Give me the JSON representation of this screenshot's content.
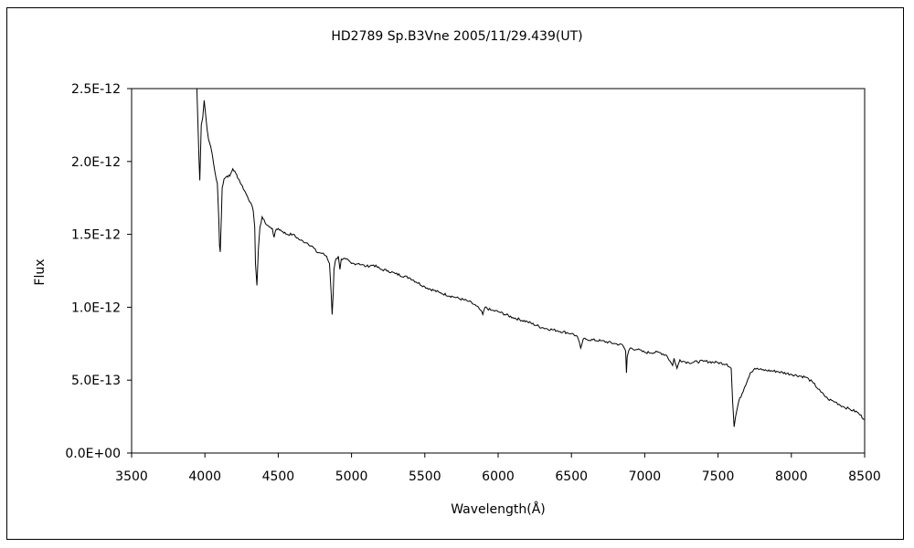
{
  "chart_data": {
    "type": "line",
    "title": "HD2789  Sp.B3Vne   2005/11/29.439(UT)",
    "xlabel": "Wavelength(Å)",
    "ylabel": "Flux",
    "xlim": [
      3500,
      8500
    ],
    "ylim": [
      0,
      2.5e-12
    ],
    "x_ticks": [
      3500,
      4000,
      4500,
      5000,
      5500,
      6000,
      6500,
      7000,
      7500,
      8000,
      8500
    ],
    "x_tick_labels": [
      "3500",
      "4000",
      "4500",
      "5000",
      "5500",
      "6000",
      "6500",
      "7000",
      "7500",
      "8000",
      "8500"
    ],
    "y_ticks": [
      0,
      5e-13,
      1e-12,
      1.5e-12,
      2e-12,
      2.5e-12
    ],
    "y_tick_labels": [
      "0.0E+00",
      "5.0E-13",
      "1.0E-12",
      "1.5E-12",
      "2.0E-12",
      "2.5E-12"
    ],
    "grid": false,
    "legend": "none",
    "line_color": "#000000",
    "series": [
      {
        "x": [
          3945,
          3960,
          3965,
          3975,
          3985,
          3995,
          4005,
          4015,
          4025,
          4040,
          4050,
          4060,
          4070,
          4085,
          4095,
          4100,
          4105,
          4112,
          4118,
          4130,
          4150,
          4170,
          4190,
          4210,
          4230,
          4250,
          4270,
          4290,
          4310,
          4330,
          4340,
          4345,
          4355,
          4365,
          4375,
          4390,
          4410,
          4440,
          4460,
          4472,
          4480,
          4500,
          4530,
          4560,
          4600,
          4650,
          4700,
          4740,
          4760,
          4800,
          4830,
          4850,
          4861,
          4868,
          4875,
          4880,
          4890,
          4910,
          4921,
          4930,
          4960,
          5000,
          5050,
          5100,
          5150,
          5200,
          5250,
          5300,
          5400,
          5500,
          5600,
          5700,
          5800,
          5850,
          5880,
          5895,
          5910,
          5950,
          6000,
          6100,
          6200,
          6300,
          6400,
          6500,
          6540,
          6563,
          6580,
          6600,
          6700,
          6800,
          6850,
          6870,
          6875,
          6880,
          6890,
          6900,
          6950,
          7000,
          7100,
          7150,
          7190,
          7200,
          7220,
          7240,
          7260,
          7300,
          7400,
          7500,
          7560,
          7590,
          7600,
          7610,
          7620,
          7640,
          7680,
          7720,
          7750,
          7800,
          7900,
          8000,
          8100,
          8150,
          8200,
          8250,
          8300,
          8350,
          8400,
          8450,
          8500
        ],
        "y": [
          2.5e-12,
          2e-12,
          1.87e-12,
          2.25e-12,
          2.3e-12,
          2.42e-12,
          2.32e-12,
          2.22e-12,
          2.15e-12,
          2.1e-12,
          2.05e-12,
          1.98e-12,
          1.92e-12,
          1.85e-12,
          1.6e-12,
          1.42e-12,
          1.38e-12,
          1.62e-12,
          1.82e-12,
          1.88e-12,
          1.9e-12,
          1.9e-12,
          1.95e-12,
          1.92e-12,
          1.88e-12,
          1.84e-12,
          1.8e-12,
          1.76e-12,
          1.72e-12,
          1.66e-12,
          1.55e-12,
          1.3e-12,
          1.15e-12,
          1.4e-12,
          1.55e-12,
          1.62e-12,
          1.58e-12,
          1.55e-12,
          1.54e-12,
          1.48e-12,
          1.52e-12,
          1.54e-12,
          1.52e-12,
          1.5e-12,
          1.5e-12,
          1.46e-12,
          1.44e-12,
          1.41e-12,
          1.38e-12,
          1.37e-12,
          1.35e-12,
          1.3e-12,
          1.1e-12,
          9.5e-13,
          1.1e-12,
          1.26e-12,
          1.32e-12,
          1.35e-12,
          1.26e-12,
          1.33e-12,
          1.33e-12,
          1.3e-12,
          1.3e-12,
          1.28e-12,
          1.29e-12,
          1.26e-12,
          1.25e-12,
          1.23e-12,
          1.2e-12,
          1.14e-12,
          1.1e-12,
          1.07e-12,
          1.04e-12,
          1.01e-12,
          9.8e-13,
          9.5e-13,
          1e-12,
          9.8e-13,
          9.7e-13,
          9.3e-13,
          9e-13,
          8.6e-13,
          8.4e-13,
          8.2e-13,
          8e-13,
          7.2e-13,
          7.8e-13,
          7.8e-13,
          7.7e-13,
          7.5e-13,
          7.4e-13,
          7e-13,
          5.5e-13,
          6.6e-13,
          7e-13,
          7.2e-13,
          7.1e-13,
          6.9e-13,
          6.9e-13,
          6.7e-13,
          6e-13,
          6.5e-13,
          5.8e-13,
          6.4e-13,
          6.3e-13,
          6.2e-13,
          6.3e-13,
          6.2e-13,
          6.1e-13,
          5.8e-13,
          3.5e-13,
          1.8e-13,
          2.5e-13,
          3.5e-13,
          4.5e-13,
          5.5e-13,
          5.8e-13,
          5.7e-13,
          5.6e-13,
          5.4e-13,
          5.2e-13,
          4.8e-13,
          4.2e-13,
          3.7e-13,
          3.5e-13,
          3.2e-13,
          3e-13,
          2.8e-13,
          2.3e-13
        ]
      }
    ]
  }
}
